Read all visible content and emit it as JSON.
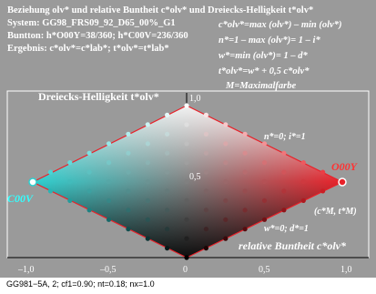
{
  "header": {
    "line1": "Beziehung olv* und relative Buntheit c*olv* und Dreiecks-Helligkeit t*olv*",
    "line2": "System: GG98_FRS09_92_D65_00%_G1",
    "line3": "Buntton: h*O00Y=38/360; h*C00V=236/360",
    "line4": "Ergebnis: c*olv*=c*lab*; t*olv*=t*lab*"
  },
  "equations": [
    "c*olv*=max (olv*) – min (olv*)",
    "n*=1 – max (olv*)= 1 – i*",
    "w*=min (olv*)= 1 – d*",
    "t*olv*=w* + 0,5 c*olv*",
    "M=Maximalfarbe"
  ],
  "axis": {
    "y_title": "Dreiecks-Helligkeit t*olv*",
    "x_title": "relative Buntheit c*olv*",
    "y_ticks": [
      "1,0",
      "0,5"
    ],
    "x_ticks": [
      "–1,0",
      "–0,5",
      "0",
      "0,5",
      "1,0"
    ]
  },
  "labels": {
    "n_i": "n*=0; i*=1",
    "w_d": "w*=0; d*=1",
    "cm_tm": "(c*M, t*M)",
    "right_color": "O00Y",
    "left_color": "C00V"
  },
  "footer": "GG981−5A, 2; cf1=0.90; nt=0.18; nx=1.0",
  "colors": {
    "background": "#9a9a9a",
    "right_hue": "#e8222a",
    "left_hue": "#2ecfcf",
    "text_red": "#ff3333",
    "text_cyan": "#33ffff"
  }
}
